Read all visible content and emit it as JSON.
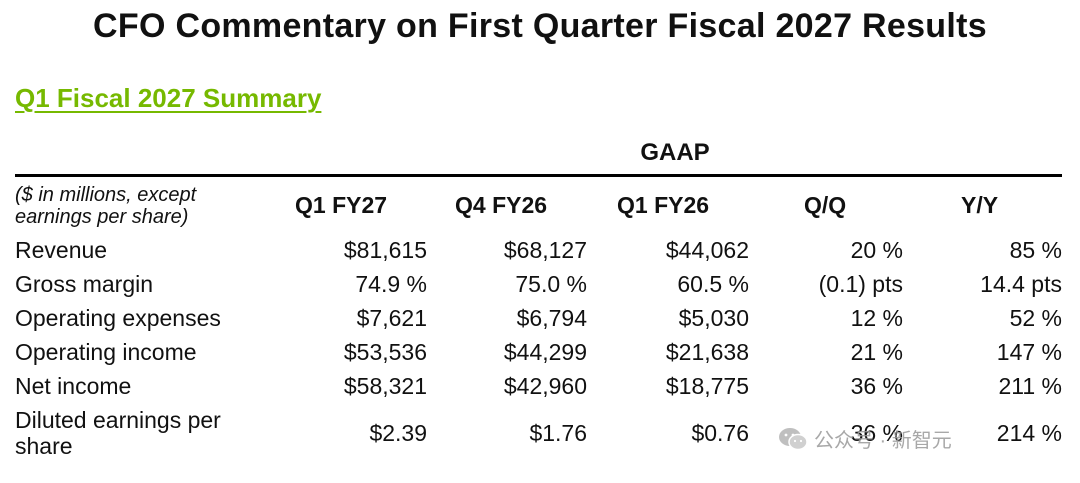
{
  "title": "CFO Commentary on First Quarter Fiscal 2027 Results",
  "summary_link": "Q1 Fiscal 2027 Summary",
  "accent_color": "#76b900",
  "table": {
    "group_header": "GAAP",
    "label_header": "($ in millions, except earnings per share)",
    "columns": [
      "Q1 FY27",
      "Q4 FY26",
      "Q1 FY26",
      "Q/Q",
      "Y/Y"
    ],
    "rows": [
      {
        "label": "Revenue",
        "values": [
          "$81,615",
          "$68,127",
          "$44,062",
          "20 %",
          "85 %"
        ]
      },
      {
        "label": "Gross margin",
        "values": [
          "74.9 %",
          "75.0 %",
          "60.5 %",
          "(0.1) pts",
          "14.4 pts"
        ]
      },
      {
        "label": "Operating expenses",
        "values": [
          "$7,621",
          "$6,794",
          "$5,030",
          "12 %",
          "52 %"
        ]
      },
      {
        "label": "Operating income",
        "values": [
          "$53,536",
          "$44,299",
          "$21,638",
          "21 %",
          "147 %"
        ]
      },
      {
        "label": "Net income",
        "values": [
          "$58,321",
          "$42,960",
          "$18,775",
          "36 %",
          "211 %"
        ]
      },
      {
        "label": "Diluted earnings per share",
        "values": [
          "$2.39",
          "$1.76",
          "$0.76",
          "36 %",
          "214 %"
        ]
      }
    ]
  },
  "watermark": {
    "icon": "wechat-icon",
    "text": "公众号 · 新智元"
  }
}
